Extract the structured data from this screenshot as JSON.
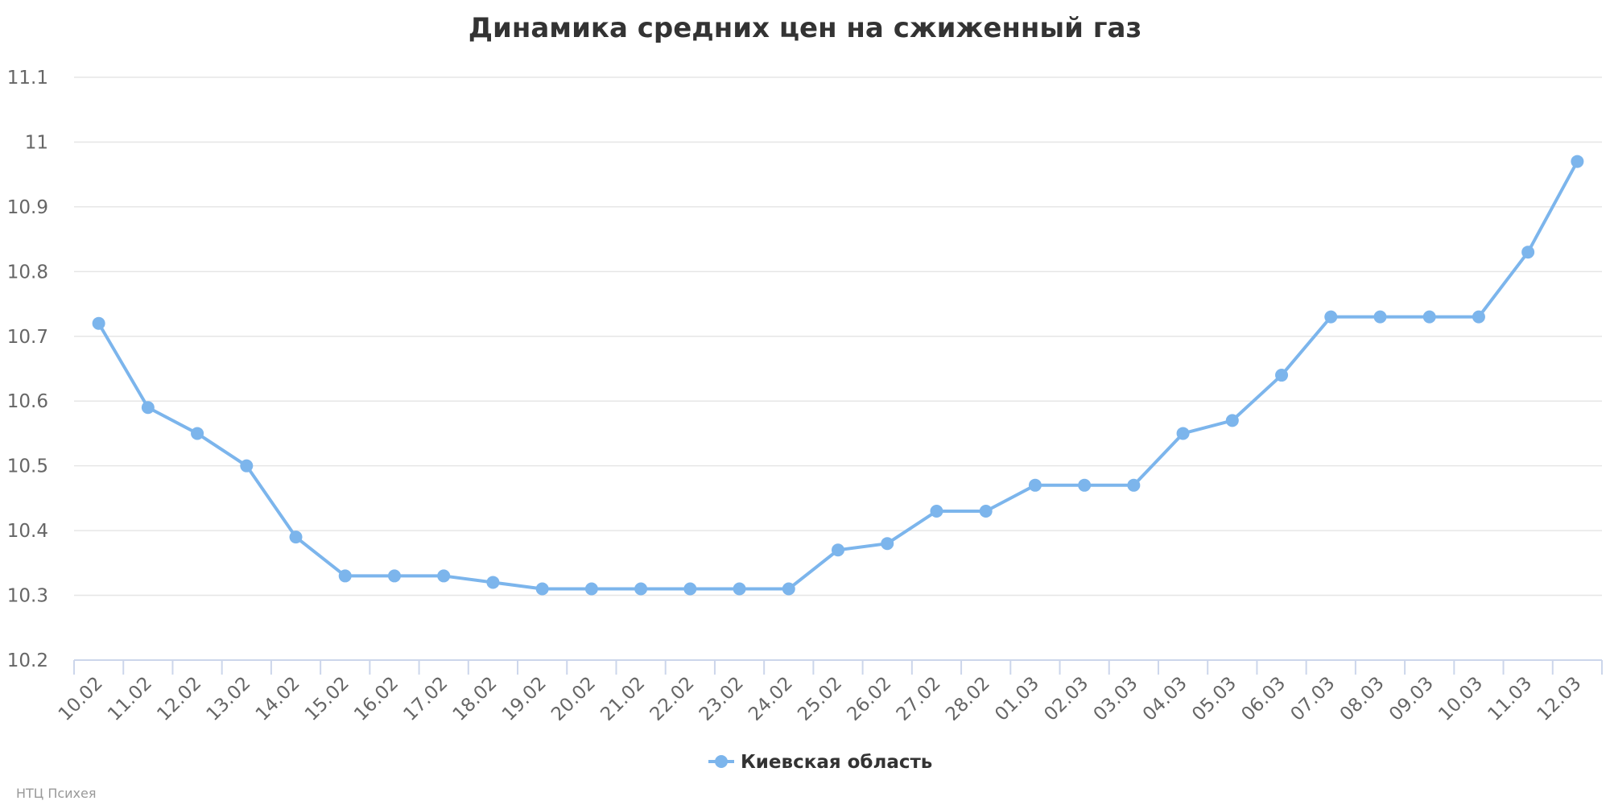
{
  "chart_data": {
    "type": "line",
    "title": "Динамика средних цен на сжиженный газ",
    "xlabel": "",
    "ylabel": "",
    "categories": [
      "10.02",
      "11.02",
      "12.02",
      "13.02",
      "14.02",
      "15.02",
      "16.02",
      "17.02",
      "18.02",
      "19.02",
      "20.02",
      "21.02",
      "22.02",
      "23.02",
      "24.02",
      "25.02",
      "26.02",
      "27.02",
      "28.02",
      "01.03",
      "02.03",
      "03.03",
      "04.03",
      "05.03",
      "06.03",
      "07.03",
      "08.03",
      "09.03",
      "10.03",
      "11.03",
      "12.03"
    ],
    "series": [
      {
        "name": "Киевская область",
        "color": "#7cb5ec",
        "values": [
          10.72,
          10.59,
          10.55,
          10.5,
          10.39,
          10.33,
          10.33,
          10.33,
          10.32,
          10.31,
          10.31,
          10.31,
          10.31,
          10.31,
          10.31,
          10.37,
          10.38,
          10.43,
          10.43,
          10.47,
          10.47,
          10.47,
          10.55,
          10.57,
          10.64,
          10.73,
          10.73,
          10.73,
          10.73,
          10.83,
          10.97
        ]
      }
    ],
    "yticks": [
      "10.2",
      "10.3",
      "10.4",
      "10.5",
      "10.6",
      "10.7",
      "10.8",
      "10.9",
      "11",
      "11.1"
    ],
    "ylim": [
      10.2,
      11.1
    ],
    "grid": true,
    "legend_position": "bottom-center",
    "credits": "НТЦ Психея"
  }
}
